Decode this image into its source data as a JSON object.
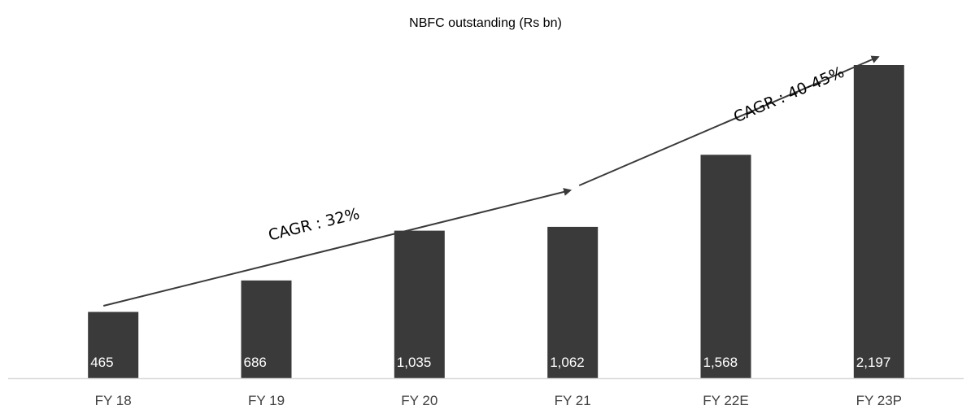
{
  "chart_data": {
    "type": "bar",
    "title": "NBFC outstanding (Rs bn)",
    "categories": [
      "FY 18",
      "FY 19",
      "FY 20",
      "FY 21",
      "FY 22E",
      "FY 23P"
    ],
    "values": [
      465,
      686,
      1035,
      1062,
      1568,
      2197
    ],
    "data_labels": [
      "465",
      "686",
      "1,035",
      "1,062",
      "1,568",
      "2,197"
    ],
    "xlabel": "",
    "ylabel": "",
    "ylim": [
      0,
      2300
    ],
    "grid": false,
    "legend": "none",
    "bar_color": "#3a3a3a",
    "annotations": [
      {
        "text": "CAGR : 32%",
        "from_category": "FY 18",
        "to_category": "FY 21"
      },
      {
        "text": "CAGR : 40-45%",
        "from_category": "FY 21",
        "to_category": "FY 23P"
      }
    ]
  },
  "colors": {
    "bar": "#3a3a3a",
    "axis": "#d9d9d9",
    "arrow": "#3a3a3a",
    "data_label": "#ffffff",
    "tick_label": "#404040"
  }
}
